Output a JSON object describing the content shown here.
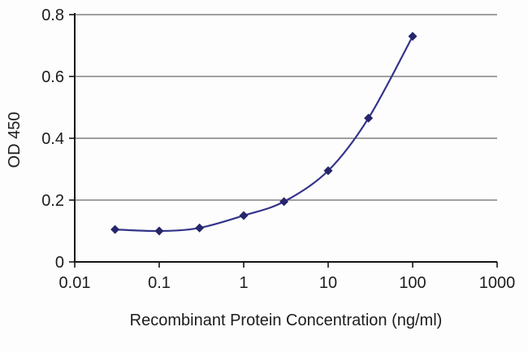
{
  "chart_data": {
    "type": "line",
    "title": "",
    "xlabel": "Recombinant Protein Concentration (ng/ml)",
    "ylabel": "OD 450",
    "x_scale": "log",
    "y_scale": "linear",
    "xlim": [
      0.01,
      1000
    ],
    "ylim": [
      0,
      0.8
    ],
    "x_ticks": [
      0.01,
      0.1,
      1,
      10,
      100,
      1000
    ],
    "x_tick_labels": [
      "0.01",
      "0.1",
      "1",
      "10",
      "100",
      "1000"
    ],
    "y_ticks": [
      0,
      0.2,
      0.4,
      0.6,
      0.8
    ],
    "y_tick_labels": [
      "0",
      "0.2",
      "0.4",
      "0.6",
      "0.8"
    ],
    "grid": "horizontal",
    "legend": "none",
    "series": [
      {
        "name": "OD 450",
        "marker": "diamond",
        "color": "#34348a",
        "marker_color": "#26266b",
        "points": [
          {
            "x": 0.03,
            "y": 0.105
          },
          {
            "x": 0.1,
            "y": 0.1
          },
          {
            "x": 0.3,
            "y": 0.11
          },
          {
            "x": 1,
            "y": 0.15
          },
          {
            "x": 3,
            "y": 0.195
          },
          {
            "x": 10,
            "y": 0.295
          },
          {
            "x": 30,
            "y": 0.465
          },
          {
            "x": 100,
            "y": 0.73
          }
        ]
      }
    ],
    "style": {
      "grid_color": "#444444",
      "axis_color": "#161616",
      "text_color": "#1c1c1c",
      "background": "#fdfdfd"
    }
  }
}
